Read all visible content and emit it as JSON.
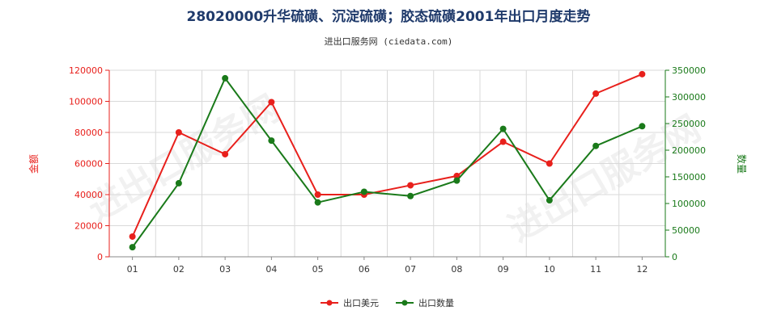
{
  "chart_data": {
    "type": "line",
    "title": "28020000升华硫磺、沉淀硫磺；胶态硫磺2001年出口月度走势",
    "subtitle": "进出口服务网 (ciedata.com)",
    "watermark": "进出口服务网",
    "categories": [
      "01",
      "02",
      "03",
      "04",
      "05",
      "06",
      "07",
      "08",
      "09",
      "10",
      "11",
      "12"
    ],
    "y_left": {
      "label": "金额",
      "range": [
        0,
        120000
      ],
      "ticks": [
        "0",
        "20000",
        "40000",
        "60000",
        "80000",
        "100000",
        "120000"
      ],
      "color": "#e8201c"
    },
    "y_right": {
      "label": "数量",
      "range": [
        0,
        350000
      ],
      "ticks": [
        "0",
        "50000",
        "100000",
        "150000",
        "200000",
        "250000",
        "300000",
        "350000"
      ],
      "color": "#1a7a1a"
    },
    "series": [
      {
        "name": "出口美元",
        "axis": "left",
        "color": "#e8201c",
        "values": [
          13000,
          80000,
          66000,
          99500,
          40000,
          40000,
          46000,
          52000,
          74000,
          60000,
          105000,
          117500
        ]
      },
      {
        "name": "出口数量",
        "axis": "right",
        "color": "#1a7a1a",
        "values": [
          18000,
          138000,
          335000,
          218000,
          102000,
          122000,
          114000,
          143000,
          240000,
          106000,
          208000,
          245000
        ]
      }
    ],
    "grid": true,
    "legend_position": "bottom"
  }
}
